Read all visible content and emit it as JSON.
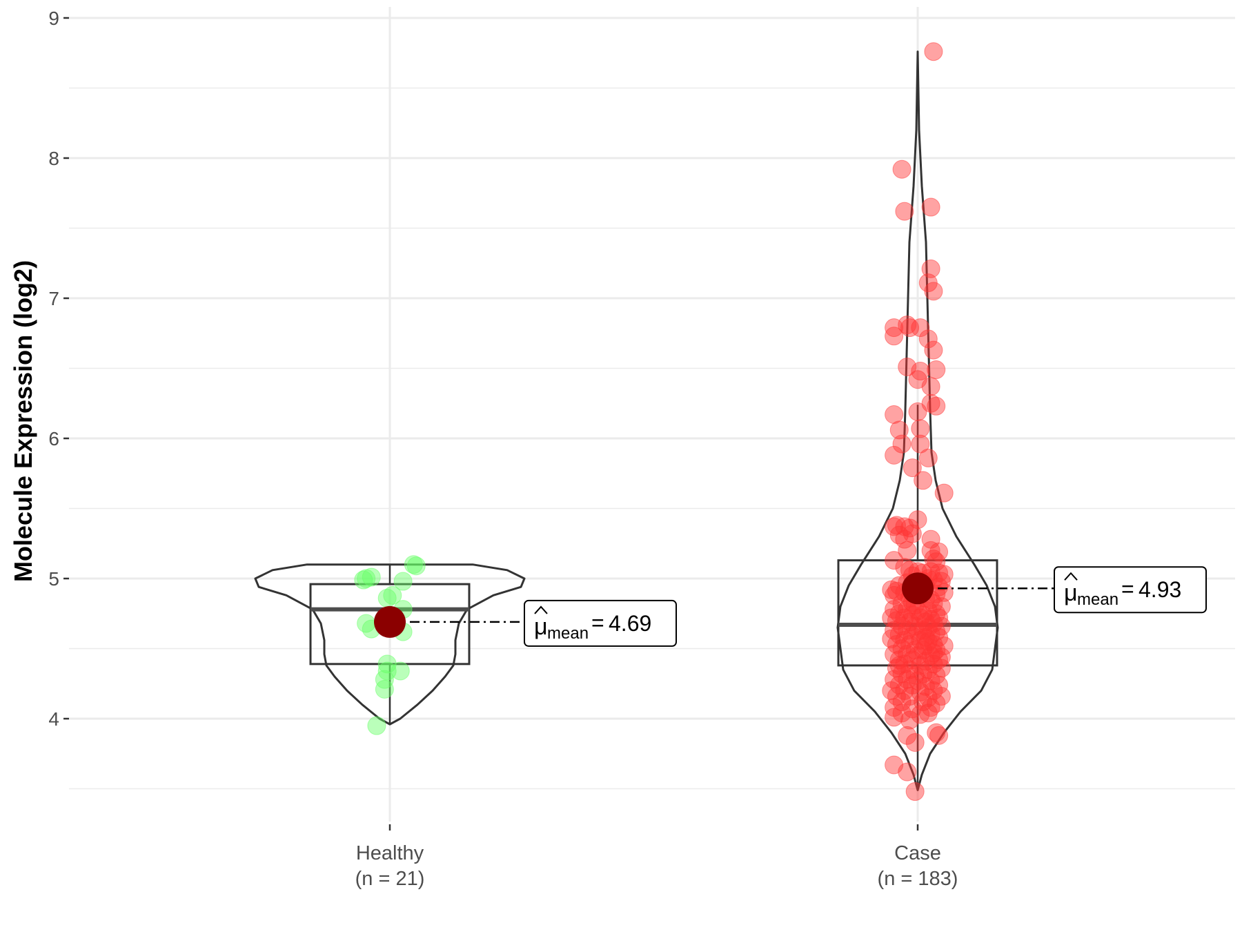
{
  "chart_data": {
    "type": "violin",
    "ylabel": "Molecule Expression (log2)",
    "ylim": [
      3.3,
      9.1
    ],
    "yticks": [
      4,
      5,
      6,
      7,
      8,
      9
    ],
    "ytick_labels": [
      "4",
      "5",
      "6",
      "7",
      "8",
      "9"
    ],
    "grid": true,
    "groups": [
      {
        "key": "healthy",
        "label": "Healthy",
        "count_label": "(n = 21)",
        "color": "#66ff66",
        "mean": 4.69,
        "mean_label": "4.69",
        "box": {
          "q1": 4.39,
          "median": 4.78,
          "q3": 4.96,
          "whisker_low": 3.96,
          "whisker_high": 5.1
        },
        "violin_range": [
          3.96,
          5.1
        ],
        "points": [
          {
            "x": -0.09,
            "y": 5.0
          },
          {
            "x": -0.07,
            "y": 5.01
          },
          {
            "x": -0.1,
            "y": 4.99
          },
          {
            "x": 0.05,
            "y": 4.98
          },
          {
            "x": 0.09,
            "y": 5.1
          },
          {
            "x": 0.1,
            "y": 5.09
          },
          {
            "x": 0.01,
            "y": 4.88
          },
          {
            "x": -0.01,
            "y": 4.86
          },
          {
            "x": 0.05,
            "y": 4.78
          },
          {
            "x": -0.09,
            "y": 4.68
          },
          {
            "x": -0.07,
            "y": 4.64
          },
          {
            "x": 0.05,
            "y": 4.62
          },
          {
            "x": 0.0,
            "y": 4.72
          },
          {
            "x": -0.01,
            "y": 4.39
          },
          {
            "x": -0.01,
            "y": 4.34
          },
          {
            "x": 0.04,
            "y": 4.34
          },
          {
            "x": -0.02,
            "y": 4.28
          },
          {
            "x": -0.02,
            "y": 4.21
          },
          {
            "x": -0.05,
            "y": 3.95
          },
          {
            "x": 0.01,
            "y": 4.72
          },
          {
            "x": 0.02,
            "y": 4.66
          }
        ]
      },
      {
        "key": "case",
        "label": "Case",
        "count_label": "(n = 183)",
        "color": "#ff3333",
        "mean": 4.93,
        "mean_label": "4.93",
        "box": {
          "q1": 4.38,
          "median": 4.67,
          "q3": 5.13,
          "whisker_low": 3.49,
          "whisker_high": 6.24
        },
        "violin_range": [
          3.49,
          8.76
        ],
        "points": [
          {
            "x": 0.06,
            "y": 8.76
          },
          {
            "x": -0.06,
            "y": 7.92
          },
          {
            "x": -0.05,
            "y": 7.62
          },
          {
            "x": 0.05,
            "y": 7.65
          },
          {
            "x": 0.05,
            "y": 7.21
          },
          {
            "x": 0.04,
            "y": 7.11
          },
          {
            "x": 0.06,
            "y": 7.05
          },
          {
            "x": -0.09,
            "y": 6.79
          },
          {
            "x": -0.09,
            "y": 6.73
          },
          {
            "x": -0.04,
            "y": 6.81
          },
          {
            "x": -0.03,
            "y": 6.79
          },
          {
            "x": 0.01,
            "y": 6.79
          },
          {
            "x": 0.04,
            "y": 6.71
          },
          {
            "x": 0.06,
            "y": 6.63
          },
          {
            "x": -0.04,
            "y": 6.51
          },
          {
            "x": 0.01,
            "y": 6.48
          },
          {
            "x": 0.0,
            "y": 6.42
          },
          {
            "x": 0.07,
            "y": 6.49
          },
          {
            "x": 0.05,
            "y": 6.37
          },
          {
            "x": 0.05,
            "y": 6.25
          },
          {
            "x": 0.07,
            "y": 6.23
          },
          {
            "x": -0.09,
            "y": 6.17
          },
          {
            "x": -0.07,
            "y": 6.06
          },
          {
            "x": 0.0,
            "y": 6.19
          },
          {
            "x": 0.01,
            "y": 6.07
          },
          {
            "x": -0.06,
            "y": 5.96
          },
          {
            "x": 0.01,
            "y": 5.96
          },
          {
            "x": -0.09,
            "y": 5.88
          },
          {
            "x": 0.04,
            "y": 5.86
          },
          {
            "x": -0.02,
            "y": 5.79
          },
          {
            "x": 0.02,
            "y": 5.7
          },
          {
            "x": 0.1,
            "y": 5.61
          },
          {
            "x": -0.09,
            "y": 5.37
          },
          {
            "x": -0.08,
            "y": 5.38
          },
          {
            "x": -0.05,
            "y": 5.37
          },
          {
            "x": -0.07,
            "y": 5.31
          },
          {
            "x": -0.05,
            "y": 5.28
          },
          {
            "x": -0.03,
            "y": 5.36
          },
          {
            "x": -0.02,
            "y": 5.32
          },
          {
            "x": 0.0,
            "y": 5.42
          },
          {
            "x": 0.05,
            "y": 5.28
          },
          {
            "x": -0.04,
            "y": 5.2
          },
          {
            "x": 0.05,
            "y": 5.2
          },
          {
            "x": 0.08,
            "y": 5.19
          },
          {
            "x": 0.06,
            "y": 5.14
          },
          {
            "x": 0.07,
            "y": 5.12
          },
          {
            "x": -0.09,
            "y": 5.13
          },
          {
            "x": -0.05,
            "y": 5.08
          },
          {
            "x": -0.03,
            "y": 5.06
          },
          {
            "x": 0.0,
            "y": 5.05
          },
          {
            "x": 0.02,
            "y": 5.04
          },
          {
            "x": 0.05,
            "y": 5.05
          },
          {
            "x": 0.08,
            "y": 5.04
          },
          {
            "x": 0.1,
            "y": 5.03
          },
          {
            "x": -0.02,
            "y": 5.02
          },
          {
            "x": 0.04,
            "y": 5.0
          },
          {
            "x": 0.06,
            "y": 4.99
          },
          {
            "x": 0.09,
            "y": 4.98
          },
          {
            "x": -0.07,
            "y": 4.95
          },
          {
            "x": -0.04,
            "y": 4.97
          },
          {
            "x": 0.03,
            "y": 4.95
          },
          {
            "x": 0.08,
            "y": 4.94
          },
          {
            "x": -0.1,
            "y": 4.92
          },
          {
            "x": -0.08,
            "y": 4.91
          },
          {
            "x": -0.05,
            "y": 4.9
          },
          {
            "x": -0.01,
            "y": 4.92
          },
          {
            "x": 0.02,
            "y": 4.9
          },
          {
            "x": 0.07,
            "y": 4.89
          },
          {
            "x": 0.1,
            "y": 4.9
          },
          {
            "x": -0.09,
            "y": 4.88
          },
          {
            "x": -0.03,
            "y": 4.86
          },
          {
            "x": 0.03,
            "y": 4.86
          },
          {
            "x": 0.05,
            "y": 4.85
          },
          {
            "x": -0.06,
            "y": 4.82
          },
          {
            "x": -0.01,
            "y": 4.81
          },
          {
            "x": 0.06,
            "y": 4.82
          },
          {
            "x": 0.09,
            "y": 4.8
          },
          {
            "x": -0.09,
            "y": 4.78
          },
          {
            "x": -0.04,
            "y": 4.78
          },
          {
            "x": 0.0,
            "y": 4.77
          },
          {
            "x": 0.04,
            "y": 4.77
          },
          {
            "x": -0.07,
            "y": 4.75
          },
          {
            "x": -0.02,
            "y": 4.74
          },
          {
            "x": 0.02,
            "y": 4.74
          },
          {
            "x": 0.07,
            "y": 4.75
          },
          {
            "x": -0.1,
            "y": 4.72
          },
          {
            "x": -0.05,
            "y": 4.72
          },
          {
            "x": 0.01,
            "y": 4.72
          },
          {
            "x": 0.05,
            "y": 4.71
          },
          {
            "x": 0.08,
            "y": 4.72
          },
          {
            "x": -0.08,
            "y": 4.7
          },
          {
            "x": -0.03,
            "y": 4.69
          },
          {
            "x": 0.03,
            "y": 4.69
          },
          {
            "x": 0.06,
            "y": 4.68
          },
          {
            "x": -0.06,
            "y": 4.66
          },
          {
            "x": -0.01,
            "y": 4.66
          },
          {
            "x": 0.04,
            "y": 4.65
          },
          {
            "x": 0.09,
            "y": 4.66
          },
          {
            "x": -0.09,
            "y": 4.63
          },
          {
            "x": -0.04,
            "y": 4.63
          },
          {
            "x": 0.0,
            "y": 4.62
          },
          {
            "x": 0.02,
            "y": 4.63
          },
          {
            "x": 0.07,
            "y": 4.62
          },
          {
            "x": -0.07,
            "y": 4.6
          },
          {
            "x": -0.02,
            "y": 4.59
          },
          {
            "x": 0.05,
            "y": 4.6
          },
          {
            "x": 0.08,
            "y": 4.58
          },
          {
            "x": -0.1,
            "y": 4.57
          },
          {
            "x": -0.05,
            "y": 4.56
          },
          {
            "x": 0.01,
            "y": 4.56
          },
          {
            "x": 0.04,
            "y": 4.55
          },
          {
            "x": -0.08,
            "y": 4.53
          },
          {
            "x": -0.03,
            "y": 4.53
          },
          {
            "x": 0.03,
            "y": 4.52
          },
          {
            "x": 0.06,
            "y": 4.53
          },
          {
            "x": 0.1,
            "y": 4.52
          },
          {
            "x": -0.06,
            "y": 4.5
          },
          {
            "x": -0.01,
            "y": 4.49
          },
          {
            "x": 0.02,
            "y": 4.49
          },
          {
            "x": 0.07,
            "y": 4.49
          },
          {
            "x": -0.09,
            "y": 4.46
          },
          {
            "x": -0.04,
            "y": 4.46
          },
          {
            "x": 0.0,
            "y": 4.45
          },
          {
            "x": 0.05,
            "y": 4.45
          },
          {
            "x": 0.09,
            "y": 4.44
          },
          {
            "x": -0.07,
            "y": 4.42
          },
          {
            "x": -0.02,
            "y": 4.42
          },
          {
            "x": 0.03,
            "y": 4.41
          },
          {
            "x": 0.08,
            "y": 4.42
          },
          {
            "x": -0.05,
            "y": 4.39
          },
          {
            "x": 0.01,
            "y": 4.38
          },
          {
            "x": 0.06,
            "y": 4.39
          },
          {
            "x": -0.08,
            "y": 4.36
          },
          {
            "x": -0.03,
            "y": 4.35
          },
          {
            "x": 0.04,
            "y": 4.35
          },
          {
            "x": 0.09,
            "y": 4.36
          },
          {
            "x": -0.06,
            "y": 4.32
          },
          {
            "x": -0.01,
            "y": 4.31
          },
          {
            "x": 0.02,
            "y": 4.32
          },
          {
            "x": 0.07,
            "y": 4.31
          },
          {
            "x": -0.09,
            "y": 4.28
          },
          {
            "x": -0.04,
            "y": 4.28
          },
          {
            "x": 0.0,
            "y": 4.27
          },
          {
            "x": 0.05,
            "y": 4.27
          },
          {
            "x": -0.07,
            "y": 4.24
          },
          {
            "x": -0.02,
            "y": 4.24
          },
          {
            "x": 0.03,
            "y": 4.23
          },
          {
            "x": 0.08,
            "y": 4.24
          },
          {
            "x": -0.1,
            "y": 4.2
          },
          {
            "x": -0.05,
            "y": 4.2
          },
          {
            "x": 0.01,
            "y": 4.19
          },
          {
            "x": 0.06,
            "y": 4.2
          },
          {
            "x": -0.08,
            "y": 4.16
          },
          {
            "x": -0.03,
            "y": 4.16
          },
          {
            "x": 0.04,
            "y": 4.15
          },
          {
            "x": 0.09,
            "y": 4.16
          },
          {
            "x": -0.06,
            "y": 4.12
          },
          {
            "x": 0.02,
            "y": 4.12
          },
          {
            "x": 0.07,
            "y": 4.11
          },
          {
            "x": -0.09,
            "y": 4.08
          },
          {
            "x": -0.02,
            "y": 4.07
          },
          {
            "x": 0.05,
            "y": 4.08
          },
          {
            "x": -0.06,
            "y": 4.04
          },
          {
            "x": 0.01,
            "y": 4.03
          },
          {
            "x": 0.04,
            "y": 4.04
          },
          {
            "x": -0.09,
            "y": 4.01
          },
          {
            "x": -0.03,
            "y": 3.99
          },
          {
            "x": 0.07,
            "y": 3.9
          },
          {
            "x": 0.08,
            "y": 3.88
          },
          {
            "x": -0.04,
            "y": 3.88
          },
          {
            "x": -0.01,
            "y": 3.83
          },
          {
            "x": -0.09,
            "y": 3.67
          },
          {
            "x": -0.04,
            "y": 3.62
          },
          {
            "x": -0.01,
            "y": 3.48
          },
          {
            "x": 0.02,
            "y": 4.98
          },
          {
            "x": -0.02,
            "y": 4.83
          },
          {
            "x": 0.06,
            "y": 4.47
          },
          {
            "x": -0.07,
            "y": 4.38
          },
          {
            "x": 0.03,
            "y": 4.58
          }
        ]
      }
    ]
  }
}
